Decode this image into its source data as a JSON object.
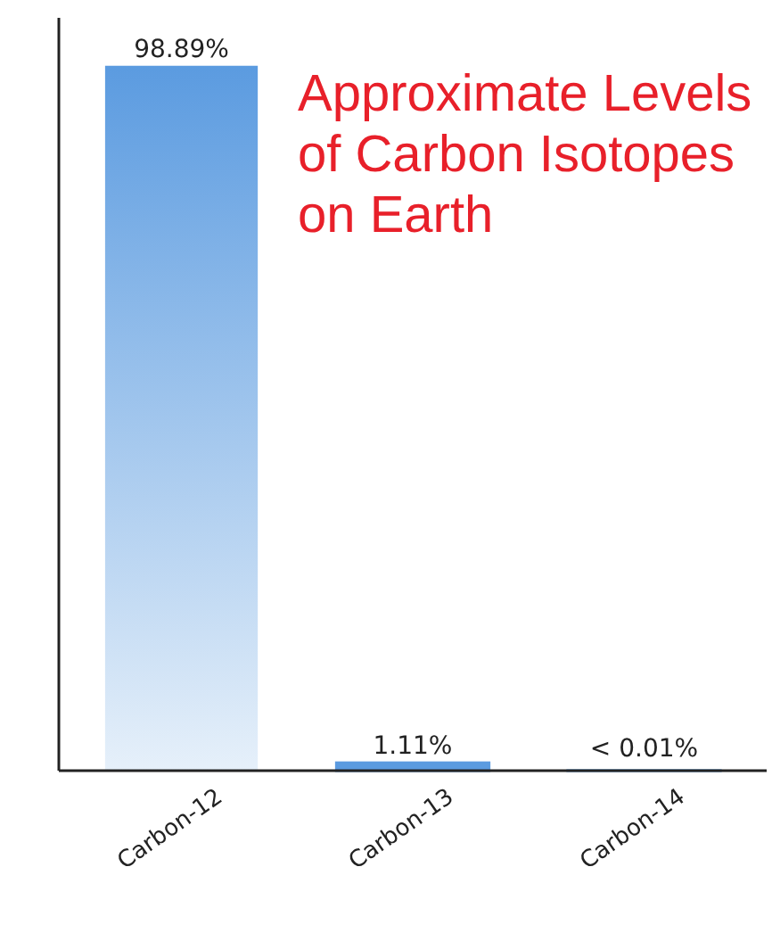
{
  "chart_data": {
    "type": "bar",
    "title": "Approximate Levels of Carbon Isotopes on Earth",
    "categories": [
      "Carbon-12",
      "Carbon-13",
      "Carbon-14"
    ],
    "values": [
      98.89,
      1.11,
      0.01
    ],
    "value_labels": [
      "98.89%",
      "1.11%",
      "< 0.01%"
    ],
    "color": "#5b9be0"
  }
}
